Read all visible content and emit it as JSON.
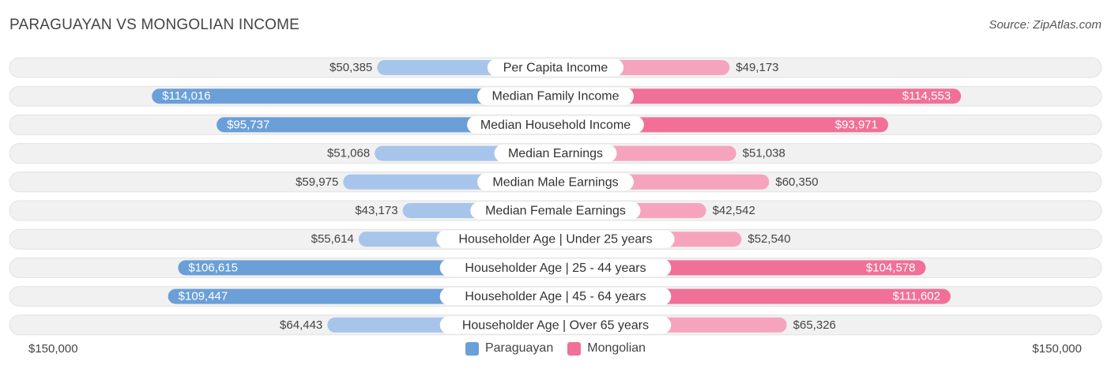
{
  "title": "PARAGUAYAN VS MONGOLIAN INCOME",
  "source": "Source: ZipAtlas.com",
  "colors": {
    "paraguayan_dark": "#6a9fd8",
    "paraguayan_light": "#a7c5ea",
    "mongolian_dark": "#f07097",
    "mongolian_light": "#f6a4be",
    "row_bg": "#efefef"
  },
  "axis": {
    "left_label": "$150,000",
    "right_label": "$150,000"
  },
  "legend": [
    {
      "label": "Paraguayan",
      "color": "#6a9fd8"
    },
    {
      "label": "Mongolian",
      "color": "#f07097"
    }
  ],
  "chart_data": {
    "type": "bar",
    "orientation": "horizontal-diverging",
    "title": "PARAGUAYAN VS MONGOLIAN INCOME",
    "xlim": [
      -150000,
      150000
    ],
    "legend_position": "bottom-center",
    "categories": [
      "Per Capita Income",
      "Median Family Income",
      "Median Household Income",
      "Median Earnings",
      "Median Male Earnings",
      "Median Female Earnings",
      "Householder Age | Under 25 years",
      "Householder Age | 25 - 44 years",
      "Householder Age | 45 - 64 years",
      "Householder Age | Over 65 years"
    ],
    "series": [
      {
        "name": "Paraguayan",
        "values": [
          50385,
          114016,
          95737,
          51068,
          59975,
          43173,
          55614,
          106615,
          109447,
          64443
        ],
        "labels": [
          "$50,385",
          "$114,016",
          "$95,737",
          "$51,068",
          "$59,975",
          "$43,173",
          "$55,614",
          "$106,615",
          "$109,447",
          "$64,443"
        ]
      },
      {
        "name": "Mongolian",
        "values": [
          49173,
          114553,
          93971,
          51038,
          60350,
          42542,
          52540,
          104578,
          111602,
          65326
        ],
        "labels": [
          "$49,173",
          "$114,553",
          "$93,971",
          "$51,038",
          "$60,350",
          "$42,542",
          "$52,540",
          "$104,578",
          "$111,602",
          "$65,326"
        ]
      }
    ]
  }
}
